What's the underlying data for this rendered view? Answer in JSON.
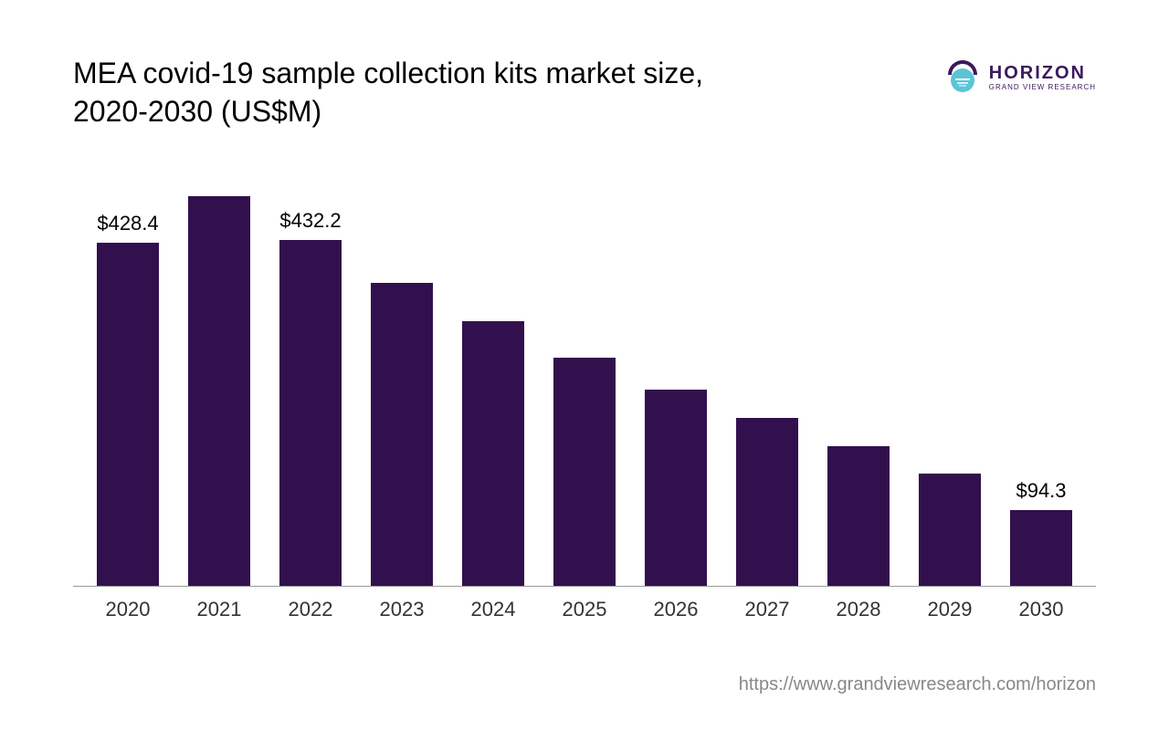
{
  "chart": {
    "type": "bar",
    "title": "MEA covid-19 sample collection kits market size, 2020-2030 (US$M)",
    "title_fontsize": 32,
    "title_color": "#000000",
    "background_color": "#ffffff",
    "categories": [
      "2020",
      "2021",
      "2022",
      "2023",
      "2024",
      "2025",
      "2026",
      "2027",
      "2028",
      "2029",
      "2030"
    ],
    "values": [
      428.4,
      486.0,
      432.2,
      378.0,
      330.0,
      285.0,
      245.0,
      210.0,
      175.0,
      140.0,
      94.3
    ],
    "value_labels": [
      "$428.4",
      "",
      "$432.2",
      "",
      "",
      "",
      "",
      "",
      "",
      "",
      "$94.3"
    ],
    "bar_color": "#32104e",
    "bar_width_pct": 68,
    "ylim": [
      0,
      500
    ],
    "axis_line_color": "#999999",
    "xlabel_fontsize": 22,
    "xlabel_color": "#333333",
    "value_label_fontsize": 22,
    "value_label_color": "#000000"
  },
  "logo": {
    "brand": "HORIZON",
    "sub": "GRAND VIEW RESEARCH",
    "arc_color": "#3a1a5c",
    "circle_color": "#5bc4d6",
    "text_color": "#3a1a5c"
  },
  "source": {
    "text": "https://www.grandviewresearch.com/horizon",
    "color": "#888888",
    "fontsize": 20
  }
}
